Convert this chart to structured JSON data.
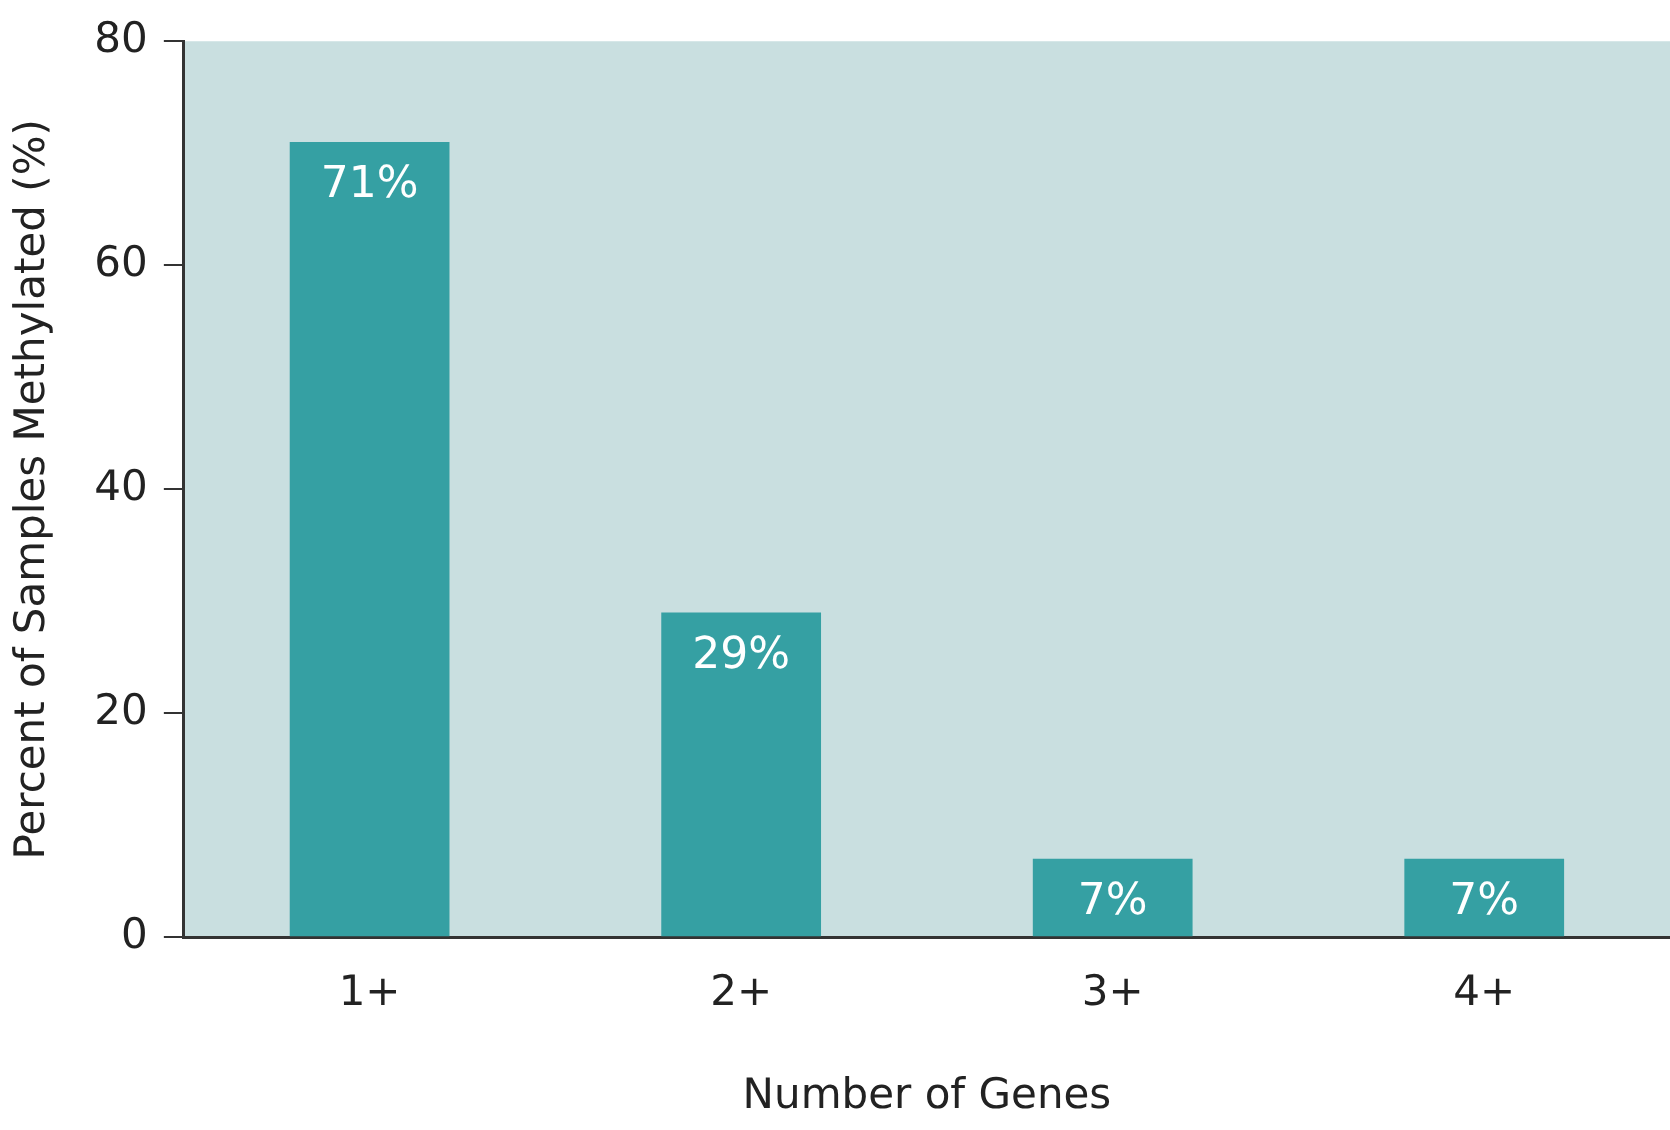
{
  "chart_data": {
    "type": "bar",
    "xlabel": "Number of Genes",
    "ylabel": "Percent of Samples Methylated (%)",
    "categories": [
      "1+",
      "2+",
      "3+",
      "4+"
    ],
    "values": [
      71,
      29,
      7,
      7
    ],
    "value_labels": [
      "71%",
      "29%",
      "7%",
      "7%"
    ],
    "color": "#35a0a3",
    "ylim": [
      0,
      80
    ],
    "yticks": [
      0,
      20,
      40,
      60,
      80
    ],
    "grid": false,
    "legend": false
  }
}
